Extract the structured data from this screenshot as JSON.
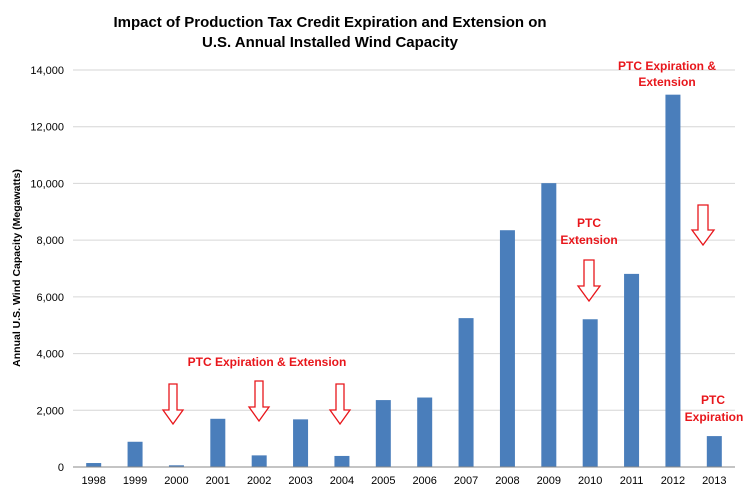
{
  "chart_data": {
    "type": "bar",
    "title_lines": [
      "Impact of Production  Tax Credit Expiration  and Extension on",
      "U.S. Annual Installed Wind Capacity"
    ],
    "ylabel": "Annual U.S. Wind Capacity (Megawatts)",
    "xlabel": "",
    "ylim": [
      0,
      14000
    ],
    "yticks": [
      0,
      2000,
      4000,
      6000,
      8000,
      10000,
      12000,
      14000
    ],
    "ytick_labels": [
      "0",
      "2,000",
      "4,000",
      "6,000",
      "8,000",
      "10,000",
      "12,000",
      "14,000"
    ],
    "grid": true,
    "categories": [
      "1998",
      "1999",
      "2000",
      "2001",
      "2002",
      "2003",
      "2004",
      "2005",
      "2006",
      "2007",
      "2008",
      "2009",
      "2010",
      "2011",
      "2012",
      "2013"
    ],
    "values": [
      140,
      890,
      60,
      1700,
      410,
      1680,
      390,
      2360,
      2450,
      5250,
      8350,
      10010,
      5210,
      6810,
      13130,
      1090
    ],
    "bar_color": "#4a7ebb",
    "annotation_color": "#e8161b",
    "annotations": [
      {
        "lines": [
          "PTC Expiration & Extension"
        ],
        "arrows_at": [
          "2000",
          "2002",
          "2004"
        ]
      },
      {
        "lines": [
          "PTC",
          "Extension"
        ],
        "arrows_at": [
          "2010"
        ]
      },
      {
        "lines": [
          "PTC Expiration &",
          "Extension"
        ],
        "arrows_at": [
          "2012/2013"
        ]
      },
      {
        "lines": [
          "PTC",
          "Expiration"
        ],
        "arrows_at": []
      }
    ]
  }
}
